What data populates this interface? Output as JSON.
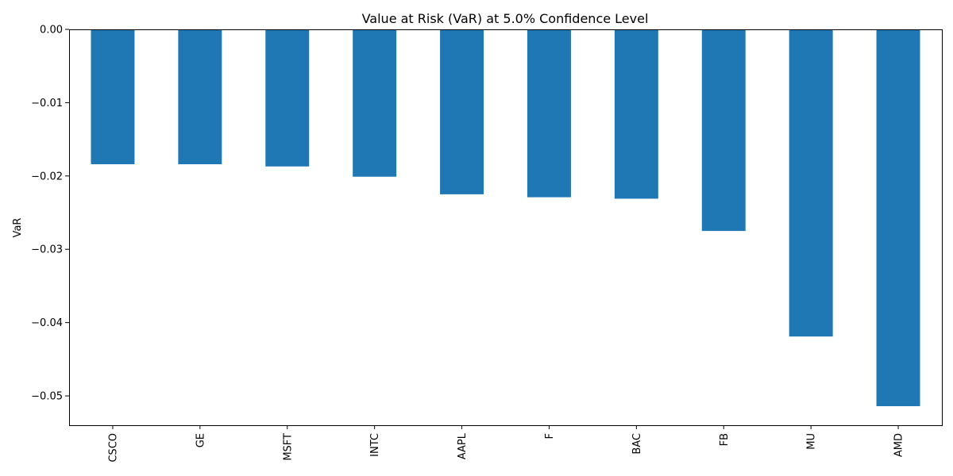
{
  "chart_data": {
    "type": "bar",
    "title": "Value at Risk (VaR) at 5.0% Confidence Level",
    "xlabel": "",
    "ylabel": "VaR",
    "categories": [
      "CSCO",
      "GE",
      "MSFT",
      "INTC",
      "AAPL",
      "F",
      "BAC",
      "FB",
      "MU",
      "AMD"
    ],
    "values": [
      -0.0184,
      -0.0184,
      -0.0187,
      -0.0201,
      -0.0225,
      -0.0229,
      -0.0231,
      -0.0275,
      -0.0419,
      -0.0514
    ],
    "ylim": [
      -0.054,
      0.0
    ],
    "yticks": [
      0.0,
      -0.01,
      -0.02,
      -0.03,
      -0.04,
      -0.05
    ],
    "ytick_labels": [
      "0.00",
      "−0.01",
      "−0.02",
      "−0.03",
      "−0.04",
      "−0.05"
    ],
    "bar_color": "#1f77b4",
    "grid": false,
    "legend": "none"
  }
}
